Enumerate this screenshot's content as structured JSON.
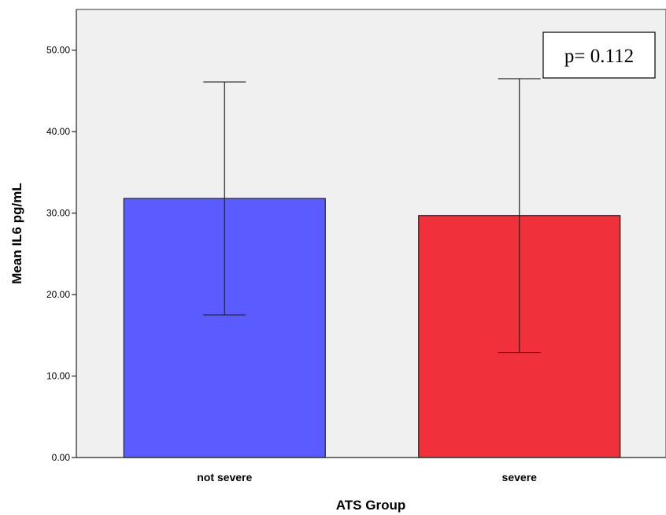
{
  "chart_data": {
    "type": "bar",
    "categories": [
      "not severe",
      "severe"
    ],
    "values": [
      31.8,
      29.7
    ],
    "error_bars": [
      {
        "low": 17.5,
        "high": 46.1
      },
      {
        "low": 12.9,
        "high": 46.5
      }
    ],
    "colors": [
      "#5a5cff",
      "#f0303a"
    ],
    "xlabel": "ATS Group",
    "ylabel": "Mean IL6 pg/mL",
    "ylim": [
      0,
      55
    ],
    "yticks": [
      0,
      10,
      20,
      30,
      40,
      50
    ],
    "ytick_labels": [
      "0.00",
      "10.00",
      "20.00",
      "30.00",
      "40.00",
      "50.00"
    ],
    "annotation": "p= 0.112",
    "annotation_placement": "top-right",
    "plot_background": "#f0f0f0",
    "grid": false
  }
}
